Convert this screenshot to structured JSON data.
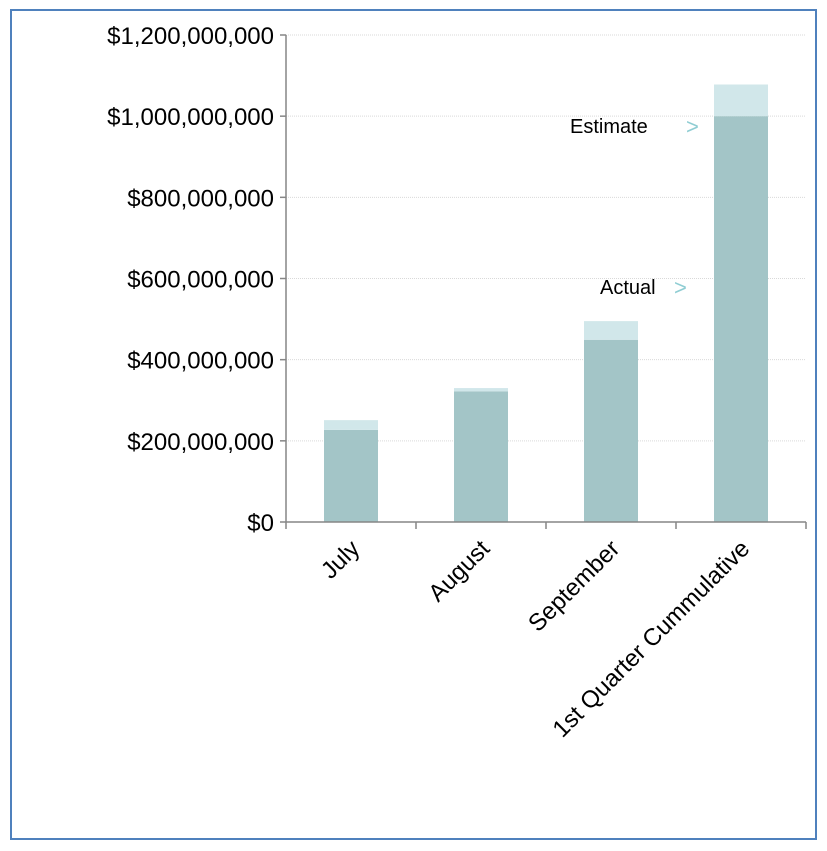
{
  "chart_data": {
    "type": "bar",
    "stacked": true,
    "categories": [
      "July",
      "August",
      "September",
      "1st Quarter Cummulative"
    ],
    "series": [
      {
        "values": [
          227000000,
          322000000,
          449000000,
          1000000000
        ]
      },
      {
        "values": [
          24000000,
          8000000,
          46000000,
          78000000
        ]
      }
    ],
    "colors": [
      "#a3c5c7",
      "#d1e7ea"
    ],
    "ylim": [
      0,
      1200000000
    ],
    "yticks": [
      0,
      200000000,
      400000000,
      600000000,
      800000000,
      1000000000,
      1200000000
    ],
    "ytick_labels": [
      "$0",
      "$200,000,000",
      "$400,000,000",
      "$600,000,000",
      "$800,000,000",
      "$1,000,000,000",
      "$1,200,000,000"
    ],
    "grid": true,
    "annotations": [
      {
        "text": "Estimate",
        "arrow_glyph": ">"
      },
      {
        "text": "Actual",
        "arrow_glyph": ">"
      }
    ],
    "arrow_color": "#8fcdd3"
  }
}
